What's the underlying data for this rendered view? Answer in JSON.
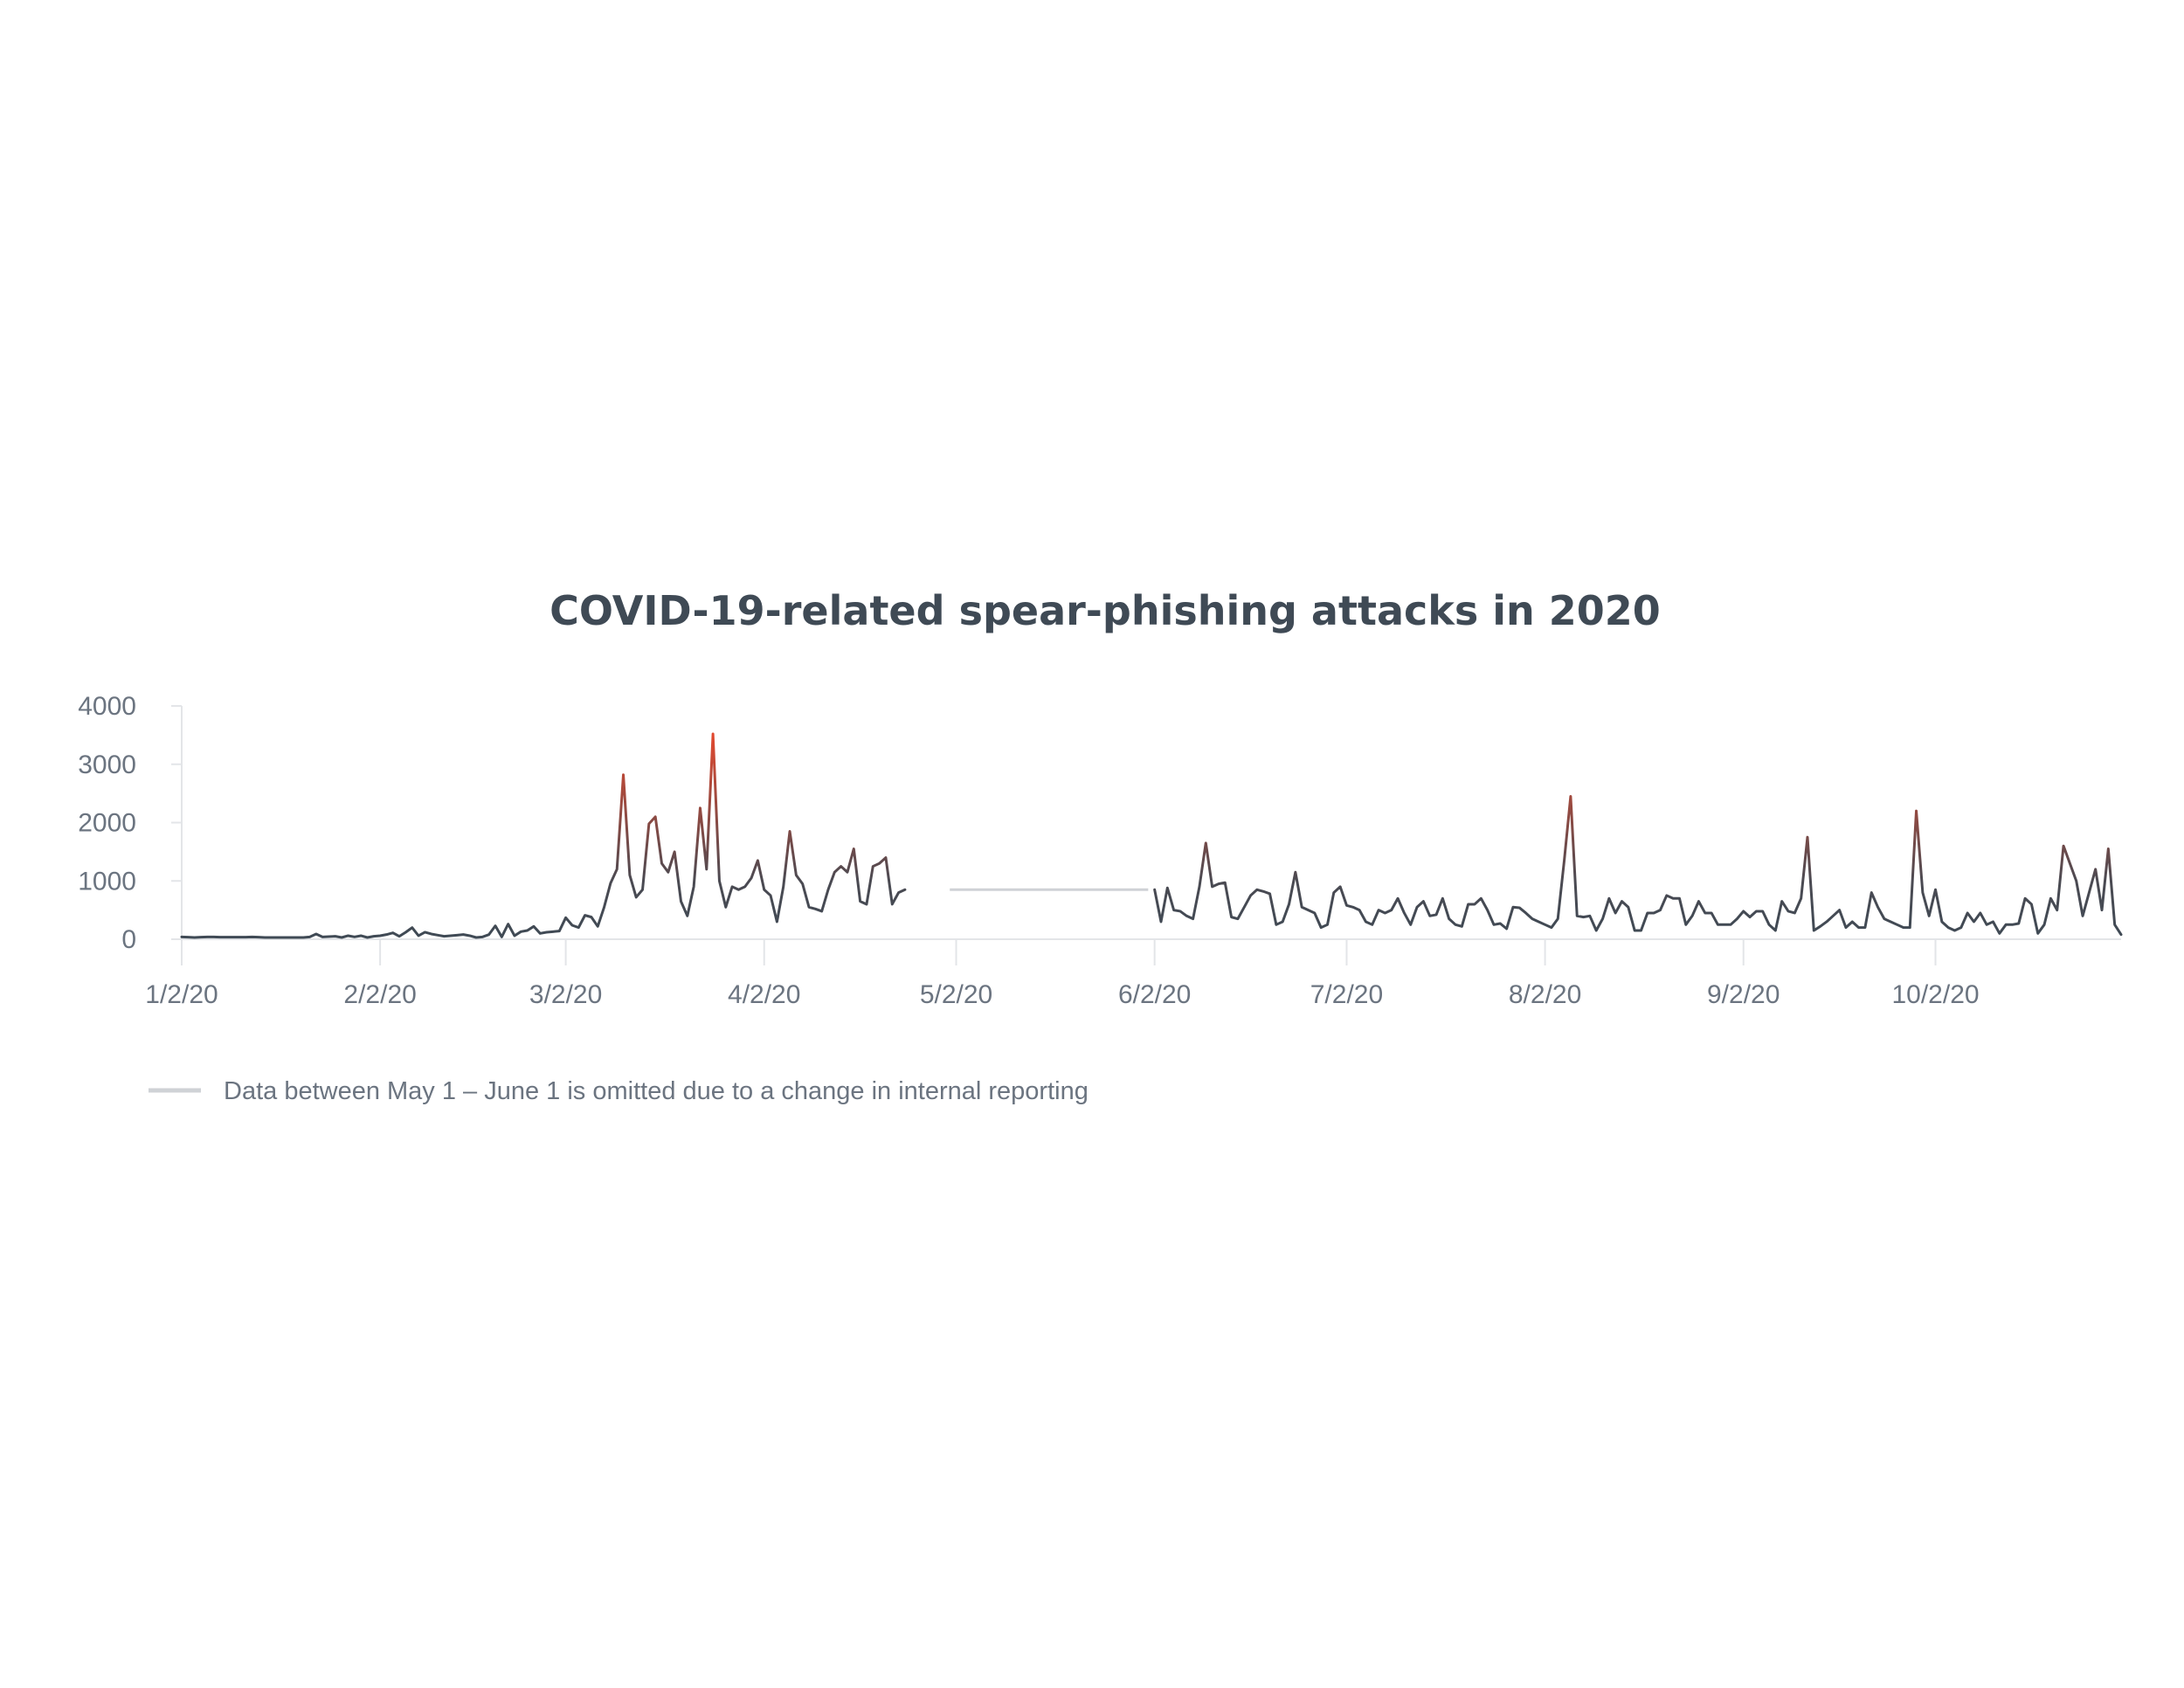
{
  "chart_data": {
    "type": "line",
    "title": "COVID-19-related spear-phishing attacks in 2020",
    "xlabel": "",
    "ylabel": "",
    "ylim": [
      0,
      4000
    ],
    "y_ticks": [
      "0",
      "1000",
      "2000",
      "3000",
      "4000"
    ],
    "x_ticks": [
      {
        "date": "2020-01-02",
        "label": "1/2/20"
      },
      {
        "date": "2020-02-02",
        "label": "2/2/20"
      },
      {
        "date": "2020-03-02",
        "label": "3/2/20"
      },
      {
        "date": "2020-04-02",
        "label": "4/2/20"
      },
      {
        "date": "2020-05-02",
        "label": "5/2/20"
      },
      {
        "date": "2020-06-02",
        "label": "6/2/20"
      },
      {
        "date": "2020-07-02",
        "label": "7/2/20"
      },
      {
        "date": "2020-08-02",
        "label": "8/2/20"
      },
      {
        "date": "2020-09-02",
        "label": "9/2/20"
      },
      {
        "date": "2020-10-02",
        "label": "10/2/20"
      }
    ],
    "x_range": [
      "2020-01-02",
      "2020-10-31"
    ],
    "grid": false,
    "colors": {
      "low": "#3f4a55",
      "high": "#e2492f",
      "gap": "#cfd2d6",
      "axis": "#e3e5e8"
    },
    "legend": {
      "placement": "bottom-left",
      "text": "Data between May 1 – June 1 is omitted due to a change in internal reporting"
    },
    "gap": {
      "start": "2020-05-01",
      "end": "2020-06-01",
      "value": 850
    },
    "series": [
      {
        "points": [
          [
            "2020-01-02",
            40
          ],
          [
            "2020-01-03",
            35
          ],
          [
            "2020-01-04",
            30
          ],
          [
            "2020-01-05",
            35
          ],
          [
            "2020-01-06",
            40
          ],
          [
            "2020-01-07",
            40
          ],
          [
            "2020-01-08",
            35
          ],
          [
            "2020-01-09",
            35
          ],
          [
            "2020-01-10",
            35
          ],
          [
            "2020-01-11",
            35
          ],
          [
            "2020-01-12",
            35
          ],
          [
            "2020-01-13",
            40
          ],
          [
            "2020-01-14",
            35
          ],
          [
            "2020-01-15",
            30
          ],
          [
            "2020-01-16",
            30
          ],
          [
            "2020-01-17",
            30
          ],
          [
            "2020-01-18",
            30
          ],
          [
            "2020-01-19",
            30
          ],
          [
            "2020-01-20",
            30
          ],
          [
            "2020-01-21",
            30
          ],
          [
            "2020-01-22",
            40
          ],
          [
            "2020-01-23",
            90
          ],
          [
            "2020-01-24",
            40
          ],
          [
            "2020-01-25",
            45
          ],
          [
            "2020-01-26",
            50
          ],
          [
            "2020-01-27",
            30
          ],
          [
            "2020-01-28",
            60
          ],
          [
            "2020-01-29",
            40
          ],
          [
            "2020-01-30",
            60
          ],
          [
            "2020-01-31",
            30
          ],
          [
            "2020-02-01",
            50
          ],
          [
            "2020-02-02",
            60
          ],
          [
            "2020-02-03",
            80
          ],
          [
            "2020-02-04",
            110
          ],
          [
            "2020-02-05",
            50
          ],
          [
            "2020-02-06",
            120
          ],
          [
            "2020-02-07",
            200
          ],
          [
            "2020-02-08",
            60
          ],
          [
            "2020-02-09",
            120
          ],
          [
            "2020-02-10",
            90
          ],
          [
            "2020-02-11",
            70
          ],
          [
            "2020-02-12",
            50
          ],
          [
            "2020-02-13",
            60
          ],
          [
            "2020-02-14",
            70
          ],
          [
            "2020-02-15",
            80
          ],
          [
            "2020-02-16",
            60
          ],
          [
            "2020-02-17",
            30
          ],
          [
            "2020-02-18",
            40
          ],
          [
            "2020-02-19",
            80
          ],
          [
            "2020-02-20",
            230
          ],
          [
            "2020-02-21",
            40
          ],
          [
            "2020-02-22",
            260
          ],
          [
            "2020-02-23",
            60
          ],
          [
            "2020-02-24",
            130
          ],
          [
            "2020-02-25",
            150
          ],
          [
            "2020-02-26",
            220
          ],
          [
            "2020-02-27",
            100
          ],
          [
            "2020-02-28",
            120
          ],
          [
            "2020-02-29",
            130
          ],
          [
            "2020-03-01",
            140
          ],
          [
            "2020-03-02",
            370
          ],
          [
            "2020-03-03",
            240
          ],
          [
            "2020-03-04",
            200
          ],
          [
            "2020-03-05",
            410
          ],
          [
            "2020-03-06",
            380
          ],
          [
            "2020-03-07",
            220
          ],
          [
            "2020-03-08",
            550
          ],
          [
            "2020-03-09",
            960
          ],
          [
            "2020-03-10",
            1200
          ],
          [
            "2020-03-11",
            2820
          ],
          [
            "2020-03-12",
            1100
          ],
          [
            "2020-03-13",
            720
          ],
          [
            "2020-03-14",
            850
          ],
          [
            "2020-03-15",
            1980
          ],
          [
            "2020-03-16",
            2100
          ],
          [
            "2020-03-17",
            1300
          ],
          [
            "2020-03-18",
            1150
          ],
          [
            "2020-03-19",
            1500
          ],
          [
            "2020-03-20",
            650
          ],
          [
            "2020-03-21",
            400
          ],
          [
            "2020-03-22",
            900
          ],
          [
            "2020-03-23",
            2250
          ],
          [
            "2020-03-24",
            1200
          ],
          [
            "2020-03-25",
            3520
          ],
          [
            "2020-03-26",
            1000
          ],
          [
            "2020-03-27",
            550
          ],
          [
            "2020-03-28",
            900
          ],
          [
            "2020-03-29",
            850
          ],
          [
            "2020-03-30",
            900
          ],
          [
            "2020-03-31",
            1050
          ],
          [
            "2020-04-01",
            1350
          ],
          [
            "2020-04-02",
            850
          ],
          [
            "2020-04-03",
            750
          ],
          [
            "2020-04-04",
            300
          ],
          [
            "2020-04-05",
            900
          ],
          [
            "2020-04-06",
            1850
          ],
          [
            "2020-04-07",
            1100
          ],
          [
            "2020-04-08",
            950
          ],
          [
            "2020-04-09",
            550
          ],
          [
            "2020-04-10",
            520
          ],
          [
            "2020-04-11",
            480
          ],
          [
            "2020-04-12",
            850
          ],
          [
            "2020-04-13",
            1150
          ],
          [
            "2020-04-14",
            1250
          ],
          [
            "2020-04-15",
            1150
          ],
          [
            "2020-04-16",
            1550
          ],
          [
            "2020-04-17",
            650
          ],
          [
            "2020-04-18",
            600
          ],
          [
            "2020-04-19",
            1250
          ],
          [
            "2020-04-20",
            1300
          ],
          [
            "2020-04-21",
            1400
          ],
          [
            "2020-04-22",
            600
          ],
          [
            "2020-04-23",
            800
          ],
          [
            "2020-04-24",
            850
          ]
        ]
      },
      {
        "points": [
          [
            "2020-06-02",
            850
          ],
          [
            "2020-06-03",
            300
          ],
          [
            "2020-06-04",
            880
          ],
          [
            "2020-06-05",
            500
          ],
          [
            "2020-06-06",
            480
          ],
          [
            "2020-06-07",
            400
          ],
          [
            "2020-06-08",
            350
          ],
          [
            "2020-06-09",
            900
          ],
          [
            "2020-06-10",
            1650
          ],
          [
            "2020-06-11",
            900
          ],
          [
            "2020-06-12",
            950
          ],
          [
            "2020-06-13",
            970
          ],
          [
            "2020-06-14",
            380
          ],
          [
            "2020-06-15",
            350
          ],
          [
            "2020-06-16",
            550
          ],
          [
            "2020-06-17",
            750
          ],
          [
            "2020-06-18",
            850
          ],
          [
            "2020-06-19",
            820
          ],
          [
            "2020-06-20",
            780
          ],
          [
            "2020-06-21",
            250
          ],
          [
            "2020-06-22",
            300
          ],
          [
            "2020-06-23",
            600
          ],
          [
            "2020-06-24",
            1150
          ],
          [
            "2020-06-25",
            550
          ],
          [
            "2020-06-26",
            500
          ],
          [
            "2020-06-27",
            450
          ],
          [
            "2020-06-28",
            200
          ],
          [
            "2020-06-29",
            250
          ],
          [
            "2020-06-30",
            800
          ],
          [
            "2020-07-01",
            900
          ],
          [
            "2020-07-02",
            580
          ],
          [
            "2020-07-03",
            550
          ],
          [
            "2020-07-04",
            500
          ],
          [
            "2020-07-05",
            300
          ],
          [
            "2020-07-06",
            250
          ],
          [
            "2020-07-07",
            500
          ],
          [
            "2020-07-08",
            450
          ],
          [
            "2020-07-09",
            500
          ],
          [
            "2020-07-10",
            700
          ],
          [
            "2020-07-11",
            450
          ],
          [
            "2020-07-12",
            250
          ],
          [
            "2020-07-13",
            550
          ],
          [
            "2020-07-14",
            650
          ],
          [
            "2020-07-15",
            400
          ],
          [
            "2020-07-16",
            420
          ],
          [
            "2020-07-17",
            700
          ],
          [
            "2020-07-18",
            350
          ],
          [
            "2020-07-19",
            250
          ],
          [
            "2020-07-20",
            220
          ],
          [
            "2020-07-21",
            600
          ],
          [
            "2020-07-22",
            600
          ],
          [
            "2020-07-23",
            700
          ],
          [
            "2020-07-24",
            500
          ],
          [
            "2020-07-25",
            250
          ],
          [
            "2020-07-26",
            270
          ],
          [
            "2020-07-27",
            180
          ],
          [
            "2020-07-28",
            550
          ],
          [
            "2020-07-29",
            540
          ],
          [
            "2020-07-30",
            450
          ],
          [
            "2020-07-31",
            350
          ],
          [
            "2020-08-01",
            300
          ],
          [
            "2020-08-02",
            250
          ],
          [
            "2020-08-03",
            200
          ],
          [
            "2020-08-04",
            350
          ],
          [
            "2020-08-05",
            1350
          ],
          [
            "2020-08-06",
            2450
          ],
          [
            "2020-08-07",
            400
          ],
          [
            "2020-08-08",
            380
          ],
          [
            "2020-08-09",
            400
          ],
          [
            "2020-08-10",
            150
          ],
          [
            "2020-08-11",
            350
          ],
          [
            "2020-08-12",
            700
          ],
          [
            "2020-08-13",
            450
          ],
          [
            "2020-08-14",
            650
          ],
          [
            "2020-08-15",
            550
          ],
          [
            "2020-08-16",
            150
          ],
          [
            "2020-08-17",
            150
          ],
          [
            "2020-08-18",
            450
          ],
          [
            "2020-08-19",
            450
          ],
          [
            "2020-08-20",
            500
          ],
          [
            "2020-08-21",
            750
          ],
          [
            "2020-08-22",
            700
          ],
          [
            "2020-08-23",
            700
          ],
          [
            "2020-08-24",
            250
          ],
          [
            "2020-08-25",
            400
          ],
          [
            "2020-08-26",
            650
          ],
          [
            "2020-08-27",
            450
          ],
          [
            "2020-08-28",
            450
          ],
          [
            "2020-08-29",
            250
          ],
          [
            "2020-08-30",
            250
          ],
          [
            "2020-08-31",
            250
          ],
          [
            "2020-09-01",
            350
          ],
          [
            "2020-09-02",
            480
          ],
          [
            "2020-09-03",
            380
          ],
          [
            "2020-09-04",
            480
          ],
          [
            "2020-09-05",
            480
          ],
          [
            "2020-09-06",
            250
          ],
          [
            "2020-09-07",
            150
          ],
          [
            "2020-09-08",
            650
          ],
          [
            "2020-09-09",
            480
          ],
          [
            "2020-09-10",
            450
          ],
          [
            "2020-09-11",
            700
          ],
          [
            "2020-09-12",
            1750
          ],
          [
            "2020-09-13",
            150
          ],
          [
            "2020-09-14",
            220
          ],
          [
            "2020-09-15",
            300
          ],
          [
            "2020-09-16",
            400
          ],
          [
            "2020-09-17",
            500
          ],
          [
            "2020-09-18",
            200
          ],
          [
            "2020-09-19",
            300
          ],
          [
            "2020-09-20",
            200
          ],
          [
            "2020-09-21",
            200
          ],
          [
            "2020-09-22",
            800
          ],
          [
            "2020-09-23",
            550
          ],
          [
            "2020-09-24",
            350
          ],
          [
            "2020-09-25",
            300
          ],
          [
            "2020-09-26",
            250
          ],
          [
            "2020-09-27",
            200
          ],
          [
            "2020-09-28",
            200
          ],
          [
            "2020-09-29",
            2200
          ],
          [
            "2020-09-30",
            800
          ],
          [
            "2020-10-01",
            400
          ],
          [
            "2020-10-02",
            850
          ],
          [
            "2020-10-03",
            300
          ],
          [
            "2020-10-04",
            200
          ],
          [
            "2020-10-05",
            150
          ],
          [
            "2020-10-06",
            200
          ],
          [
            "2020-10-07",
            450
          ],
          [
            "2020-10-08",
            300
          ],
          [
            "2020-10-09",
            450
          ],
          [
            "2020-10-10",
            250
          ],
          [
            "2020-10-11",
            300
          ],
          [
            "2020-10-12",
            100
          ],
          [
            "2020-10-13",
            250
          ],
          [
            "2020-10-14",
            250
          ],
          [
            "2020-10-15",
            270
          ],
          [
            "2020-10-16",
            700
          ],
          [
            "2020-10-17",
            600
          ],
          [
            "2020-10-18",
            100
          ],
          [
            "2020-10-19",
            250
          ],
          [
            "2020-10-20",
            700
          ],
          [
            "2020-10-21",
            500
          ],
          [
            "2020-10-22",
            1600
          ],
          [
            "2020-10-23",
            1300
          ],
          [
            "2020-10-24",
            1000
          ],
          [
            "2020-10-25",
            400
          ],
          [
            "2020-10-26",
            800
          ],
          [
            "2020-10-27",
            1200
          ],
          [
            "2020-10-28",
            500
          ],
          [
            "2020-10-29",
            1550
          ],
          [
            "2020-10-30",
            250
          ],
          [
            "2020-10-31",
            80
          ]
        ]
      }
    ]
  }
}
